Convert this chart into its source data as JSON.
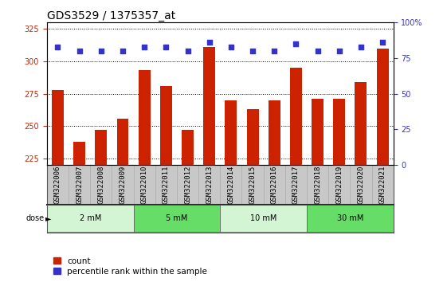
{
  "title": "GDS3529 / 1375357_at",
  "samples": [
    "GSM322006",
    "GSM322007",
    "GSM322008",
    "GSM322009",
    "GSM322010",
    "GSM322011",
    "GSM322012",
    "GSM322013",
    "GSM322014",
    "GSM322015",
    "GSM322016",
    "GSM322017",
    "GSM322018",
    "GSM322019",
    "GSM322020",
    "GSM322021"
  ],
  "counts": [
    278,
    238,
    247,
    256,
    293,
    281,
    247,
    311,
    270,
    263,
    270,
    295,
    271,
    271,
    284,
    310
  ],
  "percentiles": [
    83,
    80,
    80,
    80,
    83,
    83,
    80,
    86,
    83,
    80,
    80,
    85,
    80,
    80,
    83,
    86
  ],
  "doses": [
    {
      "label": "2 mM",
      "start": 0,
      "end": 4,
      "color": "#d4f5d4"
    },
    {
      "label": "5 mM",
      "start": 4,
      "end": 8,
      "color": "#66dd66"
    },
    {
      "label": "10 mM",
      "start": 8,
      "end": 12,
      "color": "#d4f5d4"
    },
    {
      "label": "30 mM",
      "start": 12,
      "end": 16,
      "color": "#66dd66"
    }
  ],
  "ylim_left": [
    220,
    330
  ],
  "ylim_right": [
    0,
    100
  ],
  "yticks_left": [
    225,
    250,
    275,
    300,
    325
  ],
  "yticks_right": [
    0,
    25,
    50,
    75,
    100
  ],
  "bar_color": "#cc2200",
  "dot_color": "#3333cc",
  "xtick_bg_color": "#c8c8c8",
  "plot_bg_color": "#ffffff",
  "gridline_color": "#000000",
  "gridline_lw": 0.7,
  "bar_width": 0.55,
  "dot_size": 16,
  "title_fontsize": 10,
  "tick_fontsize": 7,
  "label_fontsize": 7,
  "xtick_fontsize": 6.5,
  "legend_fontsize": 7.5
}
